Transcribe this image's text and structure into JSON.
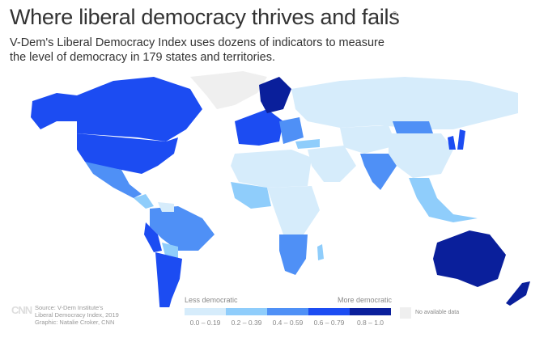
{
  "title": "Where liberal democracy thrives and fails",
  "subtitle": "V-Dem's Liberal Democracy Index uses dozens of indicators to measure the level of democracy in 179 states and territories.",
  "legend": {
    "low_label": "Less democratic",
    "high_label": "More democratic",
    "bins": [
      {
        "label": "0.0 – 0.19",
        "color": "#d6ecfb"
      },
      {
        "label": "0.2 – 0.39",
        "color": "#8fcdfb"
      },
      {
        "label": "0.4 – 0.59",
        "color": "#4f90f6"
      },
      {
        "label": "0.6 – 0.79",
        "color": "#1c4cf2"
      },
      {
        "label": "0.8 – 1.0",
        "color": "#0a1f9b"
      }
    ],
    "no_data_label": "No available data",
    "no_data_color": "#efefef"
  },
  "logo": "CNN",
  "source": {
    "line1": "Source: V-Dem Institute's",
    "line2": "Liberal Democracy Index, 2019",
    "line3": "Graphic: Natalie Croker, CNN"
  }
}
